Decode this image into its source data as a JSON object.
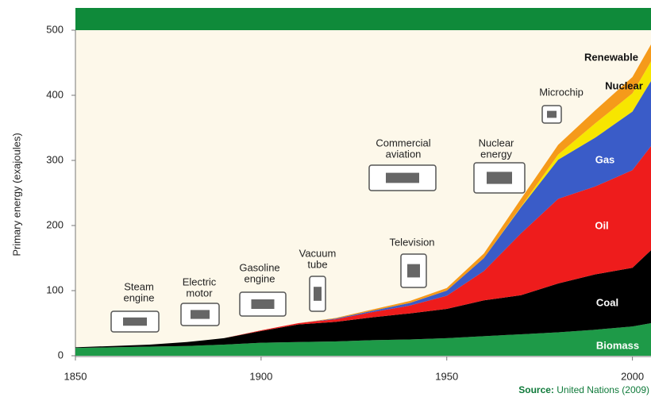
{
  "chart_data": {
    "type": "stacked-area",
    "y_label": "Primary energy (exajoules)",
    "x": [
      1850,
      1860,
      1870,
      1880,
      1890,
      1900,
      1910,
      1920,
      1930,
      1940,
      1950,
      1960,
      1970,
      1980,
      1990,
      2000,
      2005
    ],
    "xlim": [
      1850,
      2005
    ],
    "xticks": [
      1850,
      1900,
      1950,
      2000
    ],
    "ylim": [
      0,
      500
    ],
    "yticks": [
      0,
      100,
      200,
      300,
      400,
      500
    ],
    "series": [
      {
        "name": "Biomass",
        "color": "#1e9a48",
        "values": [
          12,
          13,
          14,
          15,
          17,
          20,
          21,
          22,
          24,
          25,
          27,
          30,
          33,
          36,
          40,
          45,
          50
        ]
      },
      {
        "name": "Coal",
        "color": "#000000",
        "values": [
          1,
          2,
          3,
          6,
          10,
          18,
          27,
          30,
          35,
          40,
          45,
          55,
          60,
          75,
          85,
          90,
          112
        ]
      },
      {
        "name": "Oil",
        "color": "#ee1c1c",
        "values": [
          0,
          0,
          0,
          0,
          0,
          1,
          2,
          4,
          8,
          12,
          20,
          45,
          95,
          130,
          135,
          150,
          160
        ]
      },
      {
        "name": "Gas",
        "color": "#3a5cc8",
        "values": [
          0,
          0,
          0,
          0,
          0,
          0,
          0,
          1,
          2,
          4,
          8,
          20,
          40,
          60,
          75,
          90,
          100
        ]
      },
      {
        "name": "Nuclear",
        "color": "#f7e600",
        "values": [
          0,
          0,
          0,
          0,
          0,
          0,
          0,
          0,
          0,
          0,
          0,
          0,
          1,
          8,
          22,
          28,
          30
        ]
      },
      {
        "name": "Renewable",
        "color": "#f59a1a",
        "values": [
          0,
          0,
          0,
          0,
          0,
          0,
          0,
          1,
          2,
          3,
          4,
          7,
          12,
          15,
          20,
          25,
          26
        ]
      }
    ],
    "annotations": [
      {
        "lines": [
          "Steam",
          "engine"
        ]
      },
      {
        "lines": [
          "Electric",
          "motor"
        ]
      },
      {
        "lines": [
          "Gasoline",
          "engine"
        ]
      },
      {
        "lines": [
          "Vacuum",
          "tube"
        ]
      },
      {
        "lines": [
          "Television"
        ]
      },
      {
        "lines": [
          "Commercial",
          "aviation"
        ]
      },
      {
        "lines": [
          "Nuclear",
          "energy"
        ]
      },
      {
        "lines": [
          "Microchip"
        ]
      }
    ],
    "source": {
      "label": "Source:",
      "text": "United Nations (2009)"
    }
  }
}
